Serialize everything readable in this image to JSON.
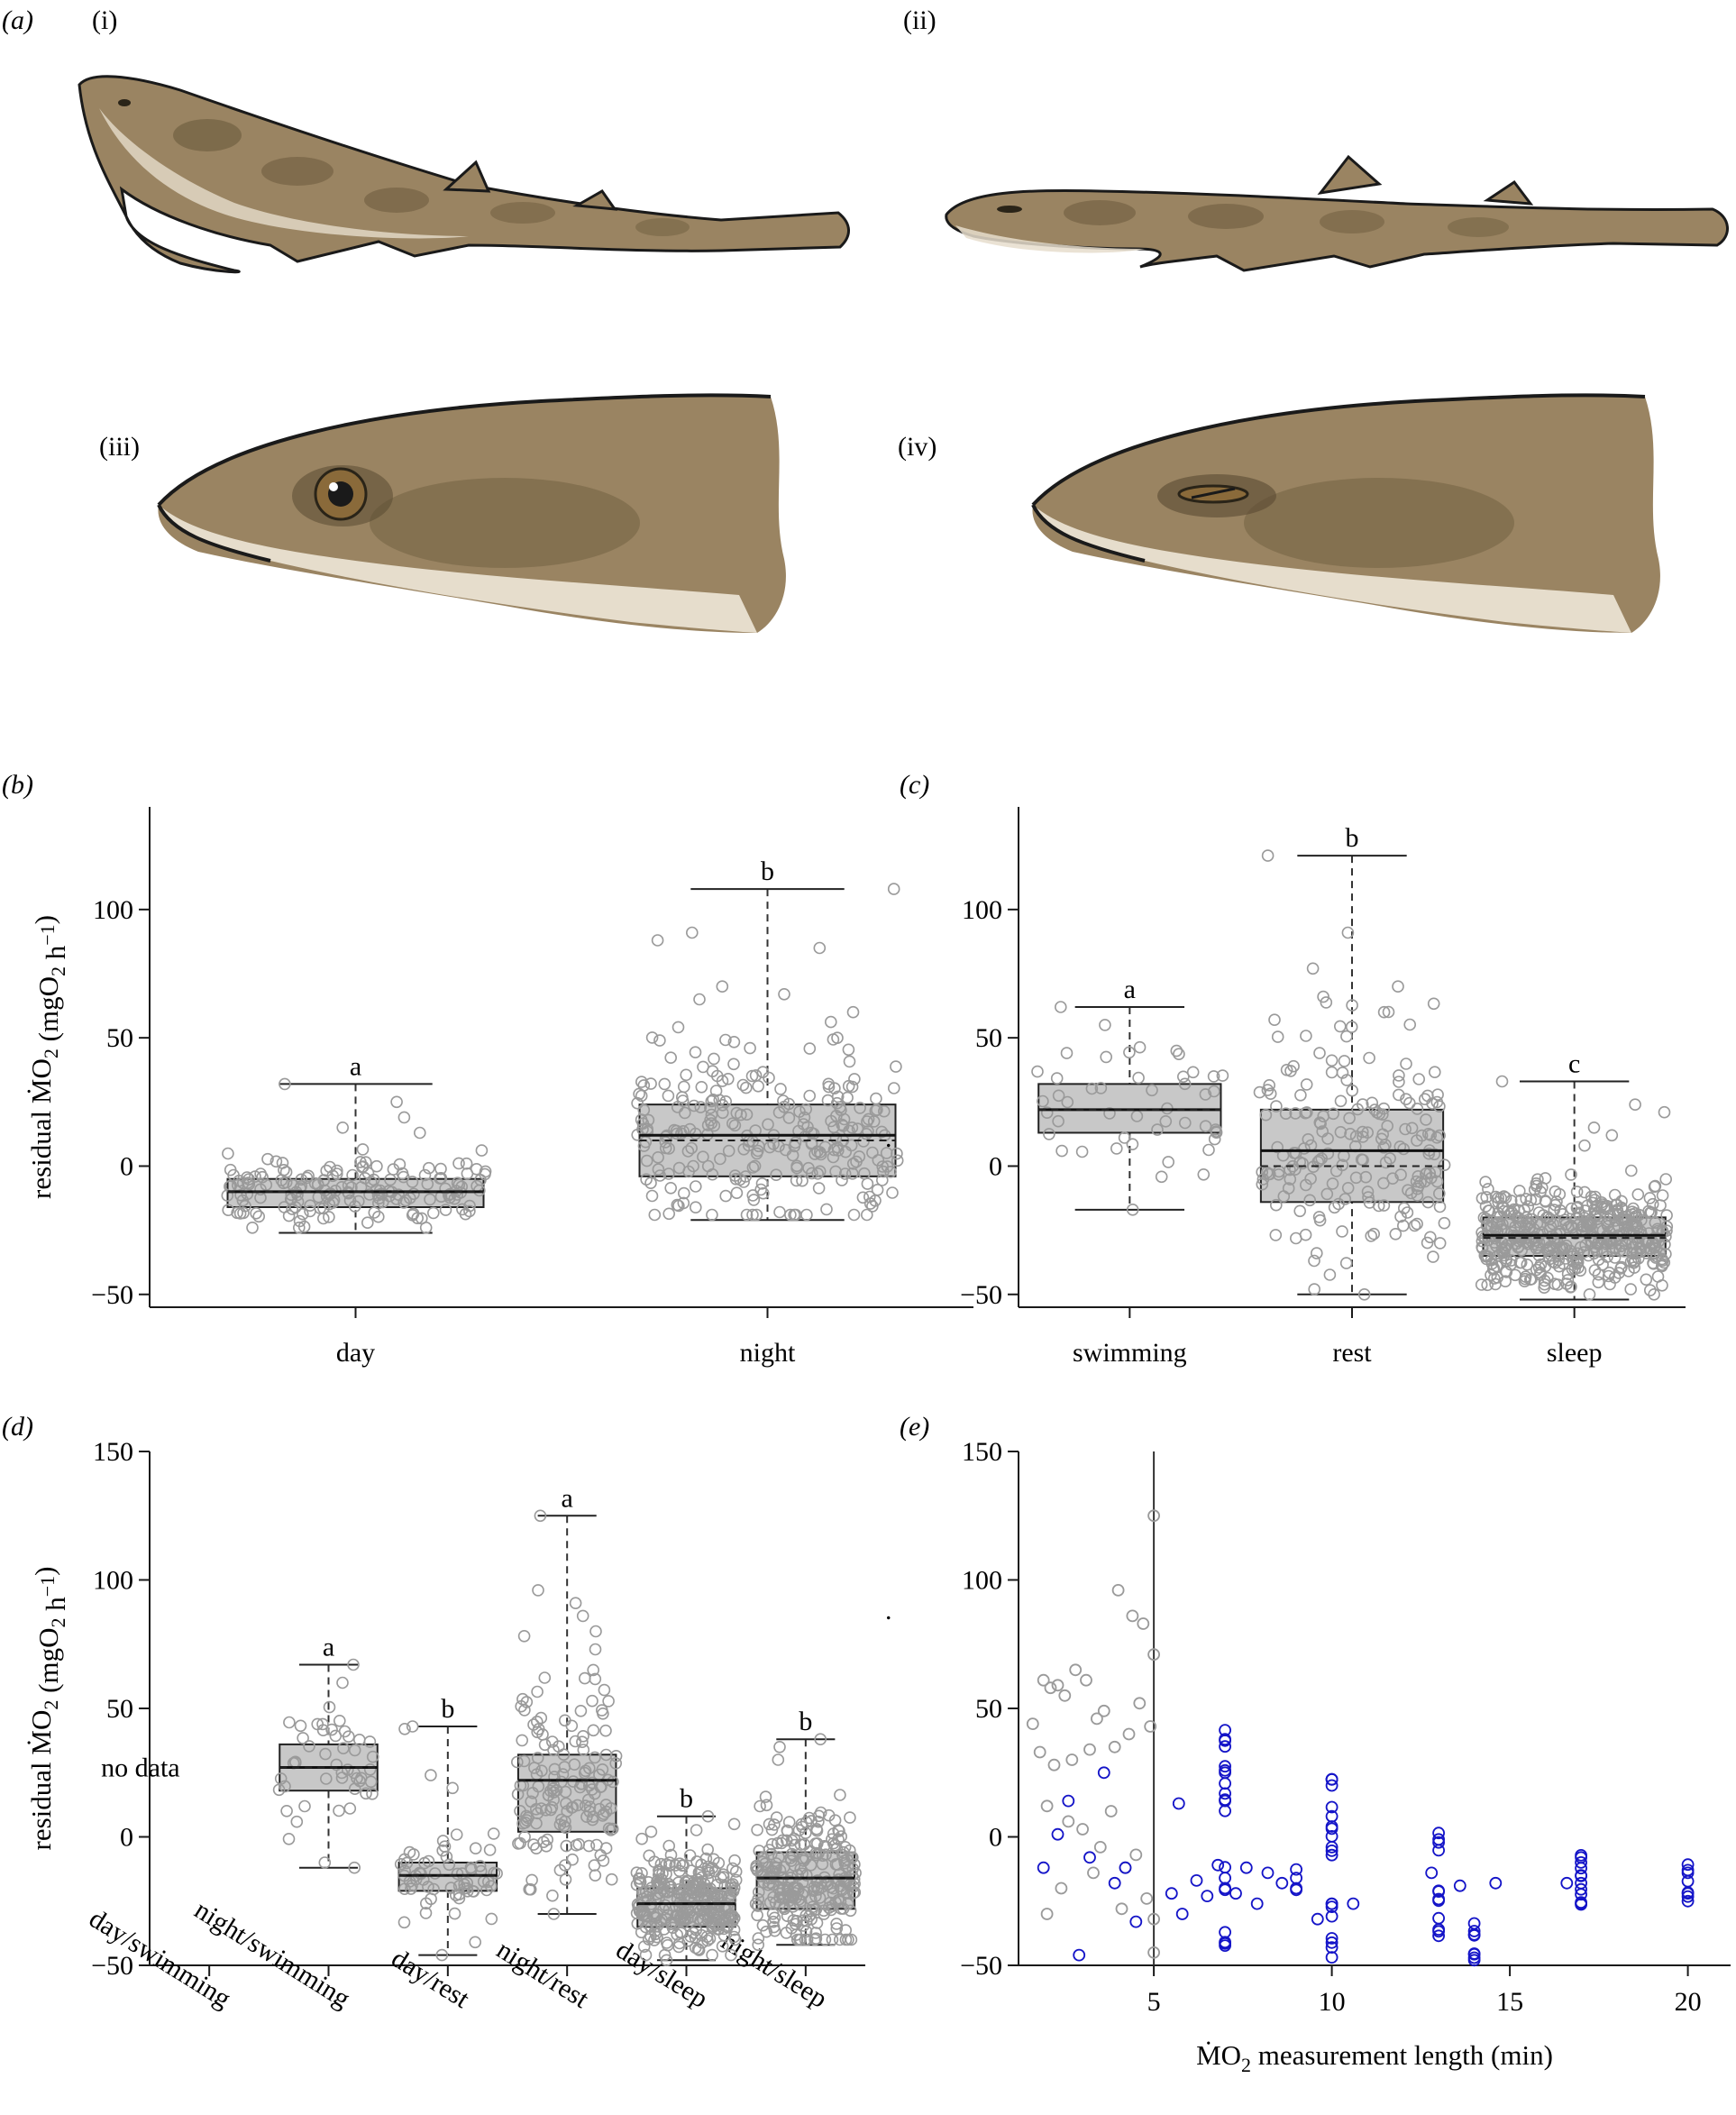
{
  "panel_a": {
    "label": "(a)",
    "sub_labels": [
      "(i)",
      "(ii)",
      "(iii)",
      "(iv)"
    ]
  },
  "colors": {
    "box_fill": "#c8c8c8",
    "point_gray": "#9a9a9a",
    "point_blue": "#1414c8",
    "axis": "#1a1a1a",
    "shark_body": "#9a8462",
    "shark_belly": "#e6ddcc",
    "shark_blotch": "#6b5a3c"
  },
  "chart_data": [
    {
      "panel": "(b)",
      "type": "box",
      "ylabel": "residual ṀO₂ (mgO₂ h⁻¹)",
      "ylim": [
        -55,
        140
      ],
      "yticks": [
        -50,
        0,
        50,
        100
      ],
      "categories": [
        "day",
        "night"
      ],
      "letters": [
        "a",
        "b"
      ],
      "boxes": [
        {
          "q1": -16,
          "median": -10,
          "mean": -10,
          "q3": -5,
          "wlo": -26,
          "whi": 32,
          "n": 170,
          "outliers": [
            32,
            25,
            15,
            13,
            19
          ]
        },
        {
          "q1": -4,
          "median": 12,
          "mean": 10,
          "q3": 24,
          "wlo": -21,
          "whi": 108,
          "n": 260,
          "outliers": [
            108,
            88,
            85,
            67,
            91,
            70,
            65,
            60
          ]
        }
      ]
    },
    {
      "panel": "(c)",
      "type": "box",
      "ylabel": "",
      "ylim": [
        -55,
        140
      ],
      "yticks": [
        -50,
        0,
        50,
        100
      ],
      "categories": [
        "swimming",
        "rest",
        "sleep"
      ],
      "letters": [
        "a",
        "b",
        "c"
      ],
      "boxes": [
        {
          "q1": 13,
          "median": 22,
          "mean": 22,
          "q3": 32,
          "wlo": -17,
          "whi": 62,
          "n": 45,
          "outliers": [
            62,
            55,
            -17
          ]
        },
        {
          "q1": -14,
          "median": 6,
          "mean": 0,
          "q3": 22,
          "wlo": -50,
          "whi": 121,
          "n": 190,
          "outliers": [
            121,
            91,
            77,
            70,
            66,
            60,
            -48,
            -50
          ]
        },
        {
          "q1": -35,
          "median": -27,
          "mean": -28,
          "q3": -20,
          "wlo": -52,
          "whi": 33,
          "n": 450,
          "outliers": [
            33,
            24,
            21,
            15,
            12,
            8
          ]
        }
      ]
    },
    {
      "panel": "(d)",
      "type": "box",
      "ylabel": "residual ṀO₂ (mgO₂ h⁻¹)",
      "ylim": [
        -50,
        150
      ],
      "yticks": [
        -50,
        0,
        50,
        100,
        150
      ],
      "categories": [
        "day/swimming",
        "night/swimming",
        "day/rest",
        "night/rest",
        "day/sleep",
        "night/sleep"
      ],
      "letters": [
        "",
        "a",
        "b",
        "a",
        "b",
        "b"
      ],
      "annotation": "no data",
      "boxes": [
        null,
        {
          "q1": 18,
          "median": 27,
          "mean": 27,
          "q3": 36,
          "wlo": -12,
          "whi": 67,
          "n": 45,
          "outliers": [
            67,
            60,
            -12,
            -10
          ]
        },
        {
          "q1": -21,
          "median": -15,
          "mean": -15,
          "q3": -10,
          "wlo": -46,
          "whi": 43,
          "n": 60,
          "outliers": [
            43,
            42,
            19,
            24,
            -46,
            -41
          ]
        },
        {
          "q1": 2,
          "median": 22,
          "mean": 22,
          "q3": 32,
          "wlo": -30,
          "whi": 125,
          "n": 150,
          "outliers": [
            125,
            96,
            91,
            86,
            80,
            73,
            -30
          ]
        },
        {
          "q1": -35,
          "median": -26,
          "mean": -26,
          "q3": -20,
          "wlo": -48,
          "whi": 8,
          "n": 280,
          "outliers": [
            8,
            5,
            2,
            -48
          ]
        },
        {
          "q1": -28,
          "median": -16,
          "mean": -16,
          "q3": -6,
          "wlo": -42,
          "whi": 38,
          "n": 260,
          "outliers": [
            38,
            35,
            30,
            -42
          ]
        }
      ]
    },
    {
      "panel": "(e)",
      "type": "scatter",
      "xlabel": "ṀO₂ measurement length (min)",
      "ylabel": "",
      "xlim": [
        1.2,
        21.2
      ],
      "ylim": [
        -50,
        150
      ],
      "xticks": [
        5,
        10,
        15,
        20
      ],
      "yticks": [
        -50,
        0,
        50,
        100,
        150
      ],
      "vline_x": 5,
      "series": [
        {
          "color": "gray",
          "points": [
            [
              1.6,
              44
            ],
            [
              1.9,
              61
            ],
            [
              2.1,
              58
            ],
            [
              2.3,
              59
            ],
            [
              2.5,
              55
            ],
            [
              2.8,
              65
            ],
            [
              3.1,
              61
            ],
            [
              3.4,
              46
            ],
            [
              3.6,
              49
            ],
            [
              4.0,
              96
            ],
            [
              4.4,
              86
            ],
            [
              4.7,
              83
            ],
            [
              5.0,
              125
            ],
            [
              5.0,
              71
            ],
            [
              4.9,
              43
            ],
            [
              4.6,
              52
            ],
            [
              4.3,
              40
            ],
            [
              3.9,
              35
            ],
            [
              3.2,
              34
            ],
            [
              2.7,
              30
            ],
            [
              2.2,
              28
            ],
            [
              1.8,
              33
            ],
            [
              2.0,
              12
            ],
            [
              2.6,
              6
            ],
            [
              3.0,
              3
            ],
            [
              3.5,
              -4
            ],
            [
              3.8,
              10
            ],
            [
              4.2,
              -12
            ],
            [
              4.5,
              -7
            ],
            [
              4.8,
              -24
            ],
            [
              5.0,
              -32
            ],
            [
              5.0,
              -45
            ],
            [
              2.0,
              -30
            ],
            [
              2.4,
              -20
            ],
            [
              3.3,
              -14
            ],
            [
              4.1,
              -28
            ]
          ]
        },
        {
          "color": "blue",
          "points": [
            [
              1.9,
              -12
            ],
            [
              2.3,
              1
            ],
            [
              2.6,
              14
            ],
            [
              2.9,
              -46
            ],
            [
              3.2,
              -8
            ],
            [
              3.6,
              25
            ],
            [
              3.9,
              -18
            ],
            [
              4.2,
              -12
            ],
            [
              4.5,
              -33
            ],
            [
              5.5,
              -22
            ],
            [
              5.7,
              13
            ],
            [
              5.8,
              -30
            ],
            [
              6.2,
              -17
            ],
            [
              6.5,
              -23
            ],
            [
              6.8,
              -11
            ],
            [
              7.0,
              38
            ],
            [
              7.0,
              25
            ],
            [
              7.0,
              14
            ],
            [
              7.0,
              -16
            ],
            [
              7.0,
              -41
            ],
            [
              7.3,
              -22
            ],
            [
              7.6,
              -12
            ],
            [
              7.9,
              -26
            ],
            [
              8.2,
              -14
            ],
            [
              8.6,
              -18
            ],
            [
              9.0,
              -16
            ],
            [
              9.6,
              -32
            ],
            [
              10.0,
              20
            ],
            [
              10.0,
              8
            ],
            [
              10.0,
              -4
            ],
            [
              10.0,
              -26
            ],
            [
              10.0,
              -43
            ],
            [
              10.6,
              -26
            ],
            [
              12.8,
              -14
            ],
            [
              13.0,
              -1
            ],
            [
              13.0,
              -21
            ],
            [
              13.0,
              -36
            ],
            [
              13.6,
              -19
            ],
            [
              14.0,
              -38
            ],
            [
              14.0,
              -48
            ],
            [
              14.6,
              -18
            ],
            [
              16.6,
              -18
            ],
            [
              17.0,
              -8
            ],
            [
              17.0,
              -18
            ],
            [
              17.0,
              -26
            ],
            [
              20.0,
              -14
            ],
            [
              20.0,
              -25
            ]
          ]
        }
      ]
    }
  ]
}
